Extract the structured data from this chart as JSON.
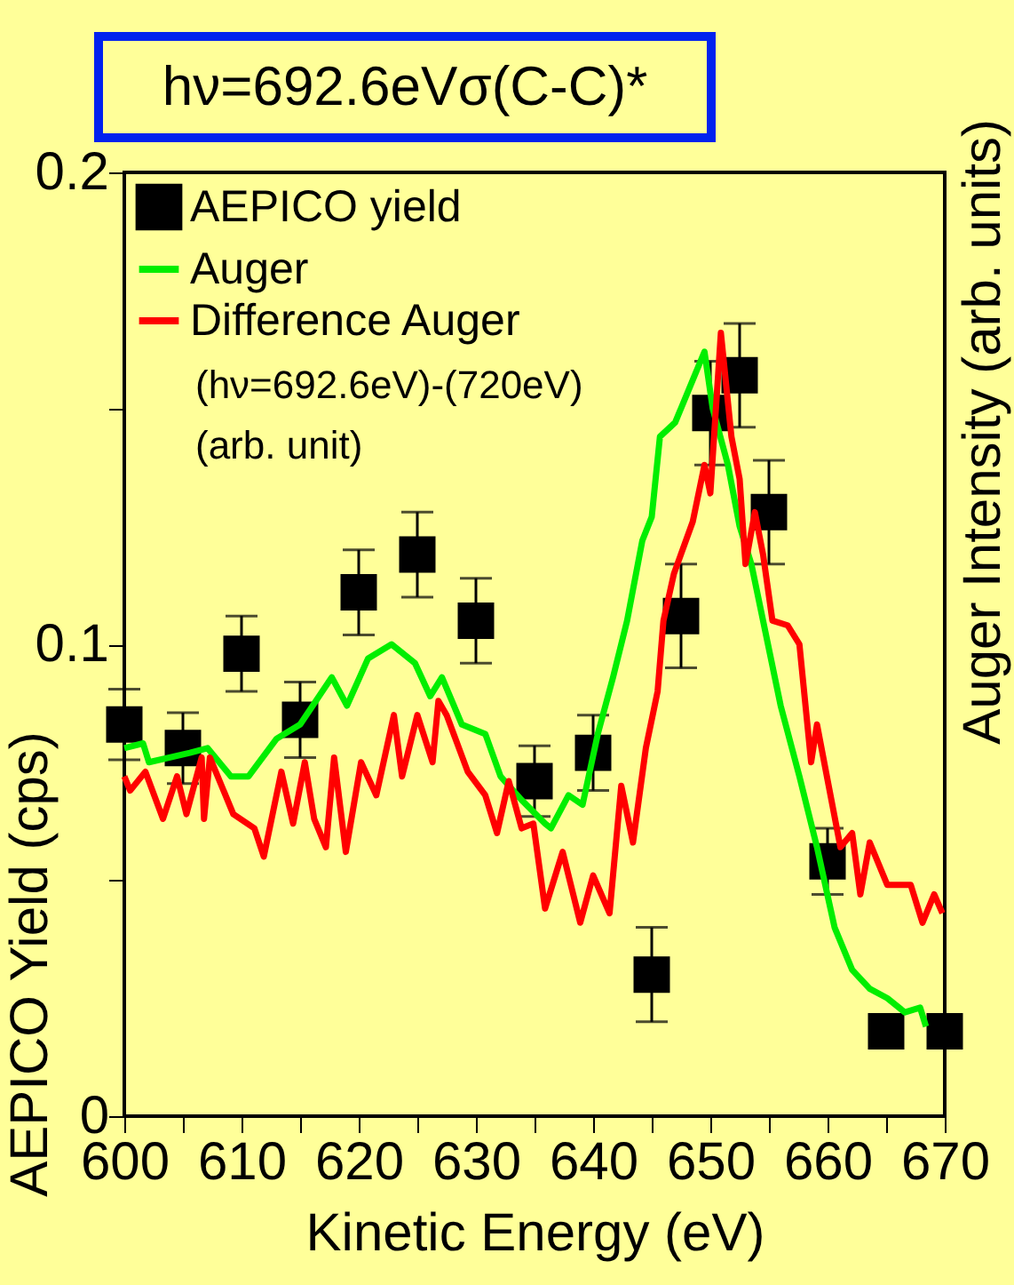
{
  "chart_data": {
    "type": "scatter",
    "title": "hν=692.6eVσ(C-C)*",
    "xlabel": "Kinetic Energy (eV)",
    "ylabel": "AEPICO Yield (cps)",
    "y2label": "Auger Intensity (arb. units)",
    "annotations": [
      "(hν=692.6eV)-(720eV)",
      "(arb. unit)"
    ],
    "xlim": [
      600,
      670
    ],
    "xticks": [
      600,
      {
        "value": 605,
        "label": null
      },
      610,
      {
        "value": 615,
        "label": null
      },
      620,
      {
        "value": 625,
        "label": null
      },
      630,
      {
        "value": 635,
        "label": null
      },
      640,
      {
        "value": 645,
        "label": null
      },
      650,
      {
        "value": 655,
        "label": null
      },
      660,
      {
        "value": 665,
        "label": null
      },
      670
    ],
    "ylim": [
      0,
      0.2
    ],
    "yticks": [
      0,
      {
        "value": 0.05,
        "label": null
      },
      0.1,
      {
        "value": 0.15,
        "label": null
      },
      0.2
    ],
    "legend": "top left",
    "grid": false,
    "series": [
      {
        "name": "AEPICO yield",
        "marker": "square",
        "color": "#000000",
        "x": [
          600,
          605,
          610,
          615,
          620,
          625,
          630,
          635,
          640,
          645,
          647.5,
          650,
          652.5,
          655,
          660,
          665,
          670
        ],
        "values": [
          0.083,
          0.078,
          0.098,
          0.084,
          0.111,
          0.119,
          0.105,
          0.071,
          0.077,
          0.03,
          0.106,
          0.149,
          0.157,
          0.128,
          0.054,
          0.018,
          0.018
        ],
        "errors": [
          0.0075,
          0.0075,
          0.008,
          0.008,
          0.009,
          0.009,
          0.009,
          0.0075,
          0.008,
          0.01,
          0.011,
          0.011,
          0.011,
          0.011,
          0.007,
          null,
          null
        ]
      },
      {
        "name": "Auger",
        "type": "line",
        "color": "#00ee00",
        "x": [
          600,
          601.6,
          602.1,
          605.6,
          607.1,
          609.1,
          610.6,
          613,
          615,
          617.7,
          619,
          620.8,
          622.8,
          624.8,
          626.1,
          627.1,
          628.8,
          630.8,
          632.1,
          633.9,
          635.9,
          636.4,
          637.9,
          639.1,
          640.4,
          641.7,
          642.9,
          644.2,
          645,
          645.7,
          647,
          648.5,
          649.5,
          650.2,
          651.5,
          652.5,
          653.5,
          654.5,
          656,
          657.6,
          659.1,
          660.6,
          662.1,
          663.6,
          665.1,
          666.6,
          667.9,
          668.4
        ],
        "values": [
          0.078,
          0.079,
          0.075,
          0.077,
          0.078,
          0.072,
          0.072,
          0.08,
          0.083,
          0.093,
          0.087,
          0.097,
          0.1,
          0.096,
          0.089,
          0.093,
          0.083,
          0.081,
          0.072,
          0.067,
          0.062,
          0.061,
          0.068,
          0.066,
          0.081,
          0.093,
          0.105,
          0.122,
          0.127,
          0.144,
          0.147,
          0.156,
          0.162,
          0.15,
          0.138,
          0.125,
          0.117,
          0.105,
          0.087,
          0.072,
          0.057,
          0.04,
          0.031,
          0.027,
          0.025,
          0.022,
          0.023,
          0.019
        ]
      },
      {
        "name": "Difference Auger",
        "type": "line",
        "color": "#ff0000",
        "x": [
          600,
          600.5,
          601.8,
          603.3,
          604.5,
          605.3,
          606.6,
          606.8,
          607.3,
          609.3,
          611.1,
          611.9,
          613.4,
          614.4,
          615.4,
          616.2,
          617.2,
          617.9,
          618.9,
          620.2,
          621.5,
          623,
          623.7,
          625,
          626.3,
          626.8,
          627.5,
          629.3,
          630.8,
          631.8,
          632.8,
          633.9,
          634.9,
          635.9,
          637.4,
          638.9,
          640,
          641.4,
          642.4,
          643.4,
          644.5,
          645.5,
          646,
          646.9,
          648.5,
          649.5,
          650,
          650.9,
          651.8,
          652.5,
          653,
          653.8,
          654.5,
          655.3,
          656.6,
          657.6,
          658.6,
          659.1,
          660.1,
          661.1,
          662.1,
          662.8,
          663.6,
          665.1,
          667.1,
          668.1,
          669.1,
          669.8
        ],
        "values": [
          0.072,
          0.069,
          0.073,
          0.063,
          0.072,
          0.064,
          0.076,
          0.063,
          0.076,
          0.064,
          0.061,
          0.055,
          0.073,
          0.062,
          0.075,
          0.063,
          0.057,
          0.076,
          0.056,
          0.075,
          0.068,
          0.085,
          0.072,
          0.085,
          0.075,
          0.088,
          0.085,
          0.073,
          0.068,
          0.06,
          0.071,
          0.061,
          0.062,
          0.044,
          0.056,
          0.041,
          0.051,
          0.043,
          0.07,
          0.058,
          0.078,
          0.09,
          0.105,
          0.115,
          0.126,
          0.138,
          0.132,
          0.166,
          0.144,
          0.135,
          0.117,
          0.128,
          0.119,
          0.105,
          0.104,
          0.1,
          0.075,
          0.083,
          0.07,
          0.057,
          0.06,
          0.047,
          0.058,
          0.049,
          0.049,
          0.041,
          0.047,
          0.043
        ]
      }
    ]
  }
}
